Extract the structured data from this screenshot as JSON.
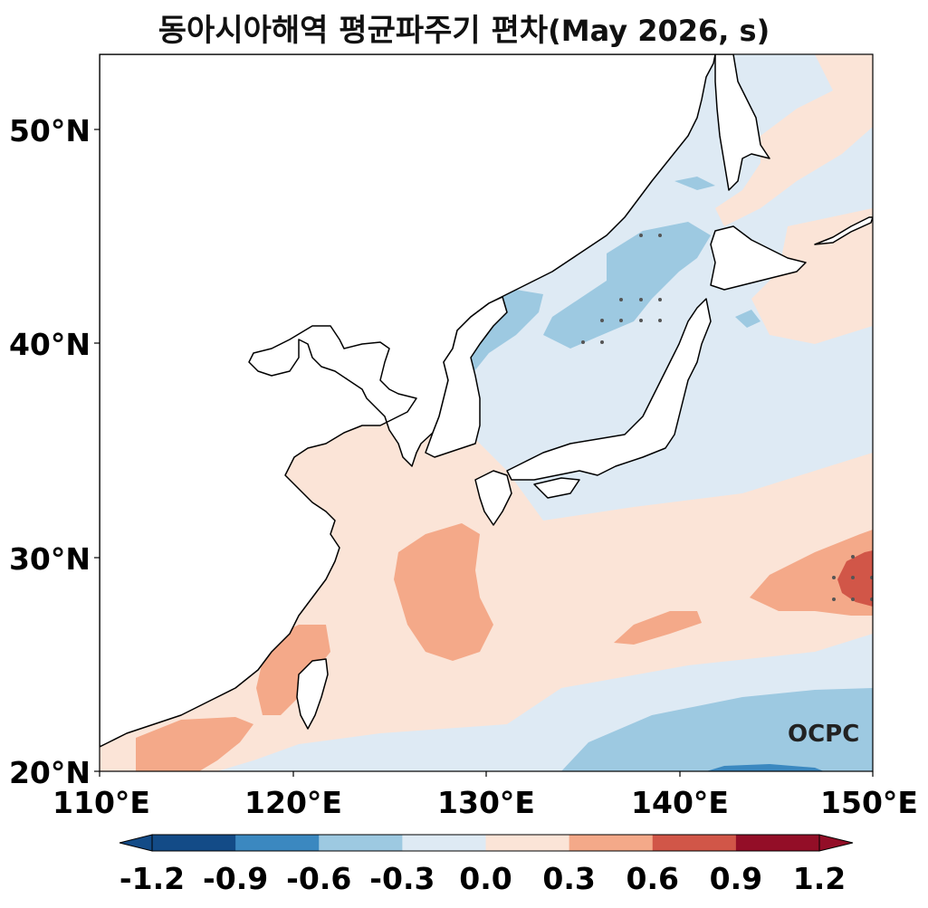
{
  "title": {
    "main": "동아시아해역 평균파주기 편차",
    "suffix": "(May 2026, s)"
  },
  "axes": {
    "y_ticks": [
      "50°N",
      "40°N",
      "30°N",
      "20°N"
    ],
    "x_ticks": [
      "110°E",
      "120°E",
      "130°E",
      "140°E",
      "150°E"
    ],
    "lon_range": [
      110,
      150
    ],
    "lat_range": [
      20,
      53.5
    ]
  },
  "colorbar": {
    "labels": [
      "-1.2",
      "-0.9",
      "-0.6",
      "-0.3",
      "0.0",
      "0.3",
      "0.6",
      "0.9",
      "1.2"
    ],
    "colors": [
      "#134b87",
      "#3b88c0",
      "#9dc9e1",
      "#deeaf4",
      "#fbe4d7",
      "#f4a989",
      "#d15648",
      "#930e27"
    ],
    "extend": "both"
  },
  "palette": {
    "neg_light": "#deeaf4",
    "neg_mid": "#9dc9e1",
    "neg_strong": "#3b88c0",
    "pos_light": "#fbe4d7",
    "pos_mid": "#f4a989",
    "pos_strong": "#d15648",
    "land": "#ffffff",
    "coast": "#000000"
  },
  "logo": {
    "text": "OCPC"
  }
}
